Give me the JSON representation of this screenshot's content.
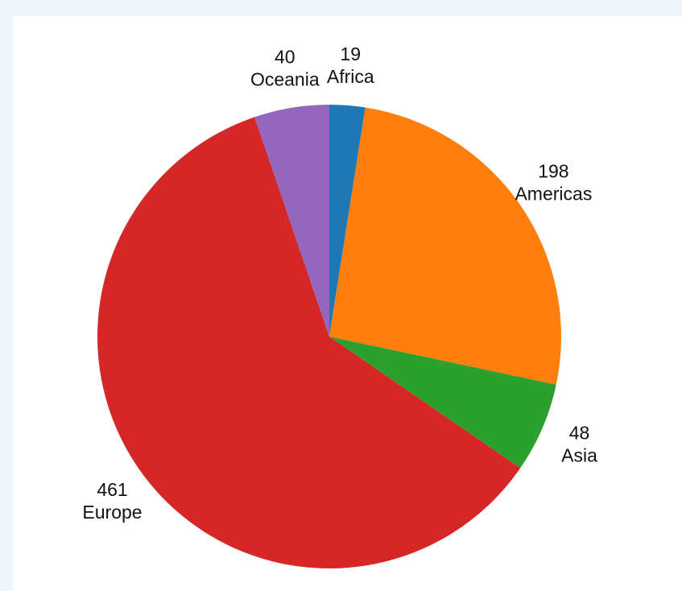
{
  "chart_data": {
    "type": "pie",
    "slices": [
      {
        "label": "Africa",
        "value": 19,
        "color": "#1f77b4"
      },
      {
        "label": "Americas",
        "value": 198,
        "color": "#ff7f0e"
      },
      {
        "label": "Asia",
        "value": 48,
        "color": "#2ca02c"
      },
      {
        "label": "Europe",
        "value": 461,
        "color": "#d62728"
      },
      {
        "label": "Oceania",
        "value": 40,
        "color": "#9467bd"
      }
    ],
    "start": "top",
    "direction": "clockwise"
  }
}
